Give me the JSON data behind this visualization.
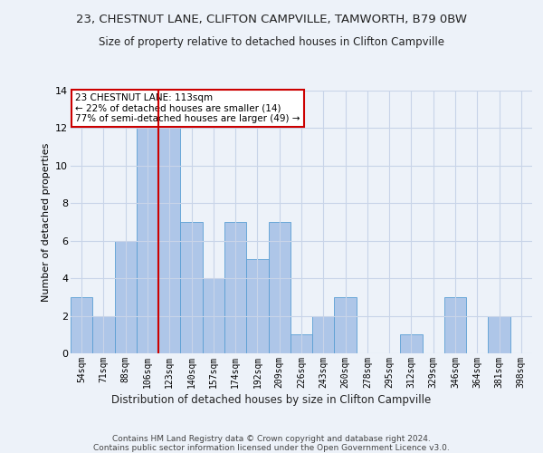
{
  "title1": "23, CHESTNUT LANE, CLIFTON CAMPVILLE, TAMWORTH, B79 0BW",
  "title2": "Size of property relative to detached houses in Clifton Campville",
  "xlabel": "Distribution of detached houses by size in Clifton Campville",
  "ylabel": "Number of detached properties",
  "footer": "Contains HM Land Registry data © Crown copyright and database right 2024.\nContains public sector information licensed under the Open Government Licence v3.0.",
  "categories": [
    "54sqm",
    "71sqm",
    "88sqm",
    "106sqm",
    "123sqm",
    "140sqm",
    "157sqm",
    "174sqm",
    "192sqm",
    "209sqm",
    "226sqm",
    "243sqm",
    "260sqm",
    "278sqm",
    "295sqm",
    "312sqm",
    "329sqm",
    "346sqm",
    "364sqm",
    "381sqm",
    "398sqm"
  ],
  "values": [
    3,
    2,
    6,
    12,
    12,
    7,
    4,
    7,
    5,
    7,
    1,
    2,
    3,
    0,
    0,
    1,
    0,
    3,
    0,
    2,
    0
  ],
  "bar_color": "#aec6e8",
  "bar_edge_color": "#5a9fd4",
  "grid_color": "#c8d4e8",
  "background_color": "#edf2f9",
  "vline_color": "#cc0000",
  "vline_index": 3.5,
  "annotation_text": "23 CHESTNUT LANE: 113sqm\n← 22% of detached houses are smaller (14)\n77% of semi-detached houses are larger (49) →",
  "annotation_box_color": "#ffffff",
  "annotation_border_color": "#cc0000",
  "ylim": [
    0,
    14
  ],
  "yticks": [
    0,
    2,
    4,
    6,
    8,
    10,
    12,
    14
  ]
}
